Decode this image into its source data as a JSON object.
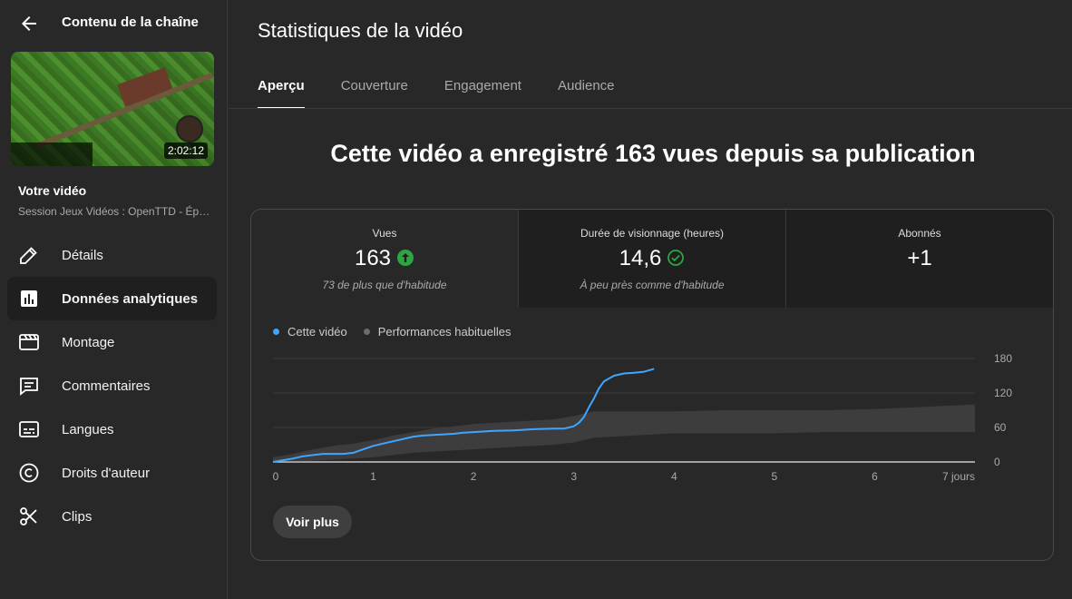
{
  "sidebar": {
    "title": "Contenu de la chaîne",
    "thumbnail_duration": "2:02:12",
    "your_video_label": "Votre vidéo",
    "video_title": "Session Jeux Vidéos : OpenTTD - Ép…",
    "items": [
      {
        "label": "Détails",
        "icon": "pencil-icon"
      },
      {
        "label": "Données analytiques",
        "icon": "analytics-icon",
        "active": true
      },
      {
        "label": "Montage",
        "icon": "clapperboard-icon"
      },
      {
        "label": "Commentaires",
        "icon": "comment-icon"
      },
      {
        "label": "Langues",
        "icon": "subtitles-icon"
      },
      {
        "label": "Droits d'auteur",
        "icon": "copyright-icon"
      },
      {
        "label": "Clips",
        "icon": "scissors-icon"
      }
    ]
  },
  "main": {
    "title": "Statistiques de la vidéo",
    "tabs": [
      {
        "label": "Aperçu",
        "active": true
      },
      {
        "label": "Couverture"
      },
      {
        "label": "Engagement"
      },
      {
        "label": "Audience"
      }
    ],
    "headline": "Cette vidéo a enregistré 163 vues depuis sa publication",
    "metrics": [
      {
        "label": "Vues",
        "value": "163",
        "sub": "73 de plus que d'habitude",
        "icon": "arrow-up-circle-icon"
      },
      {
        "label": "Durée de visionnage (heures)",
        "value": "14,6",
        "sub": "À peu près comme d'habitude",
        "icon": "check-circle-icon"
      },
      {
        "label": "Abonnés",
        "value": "+1",
        "sub": ""
      }
    ],
    "see_more": "Voir plus"
  },
  "colors": {
    "accent_line": "#3ea6ff",
    "typical_band": "#3d3d3d",
    "up_green": "#2ba640"
  },
  "chart_data": {
    "type": "line",
    "legend": [
      "Cette vidéo",
      "Performances habituelles"
    ],
    "x_ticks": [
      "0",
      "1",
      "2",
      "3",
      "4",
      "5",
      "6",
      "7 jours"
    ],
    "y_ticks": [
      "180",
      "120",
      "60",
      "0"
    ],
    "xlim": [
      0,
      7
    ],
    "ylim": [
      0,
      180
    ],
    "series": [
      {
        "name": "Cette vidéo",
        "x": [
          0,
          0.1,
          0.2,
          0.3,
          0.4,
          0.5,
          0.6,
          0.7,
          0.8,
          0.9,
          1.0,
          1.1,
          1.2,
          1.3,
          1.4,
          1.5,
          1.6,
          1.7,
          1.8,
          1.9,
          2.0,
          2.2,
          2.4,
          2.6,
          2.8,
          2.9,
          3.0,
          3.05,
          3.1,
          3.15,
          3.2,
          3.25,
          3.3,
          3.4,
          3.5,
          3.6,
          3.7,
          3.8
        ],
        "values": [
          0,
          3,
          6,
          10,
          12,
          14,
          14,
          14,
          16,
          22,
          28,
          32,
          36,
          40,
          44,
          46,
          47,
          48,
          49,
          51,
          52,
          54,
          55,
          57,
          58,
          58,
          62,
          68,
          78,
          95,
          110,
          128,
          140,
          150,
          154,
          155,
          157,
          162
        ]
      },
      {
        "name": "Performances habituelles",
        "band_x": [
          0,
          0.2,
          0.4,
          0.6,
          0.8,
          1.0,
          1.2,
          1.4,
          1.6,
          1.8,
          2.0,
          2.2,
          2.4,
          2.6,
          2.8,
          3.0,
          3.2,
          3.4,
          3.6,
          3.8,
          4.0,
          4.5,
          5.0,
          5.5,
          6.0,
          6.5,
          7.0
        ],
        "upper": [
          8,
          14,
          22,
          28,
          32,
          38,
          46,
          52,
          58,
          62,
          66,
          68,
          70,
          72,
          74,
          80,
          88,
          88,
          88,
          88,
          88,
          90,
          90,
          90,
          92,
          96,
          100
        ],
        "lower": [
          0,
          0,
          2,
          4,
          6,
          8,
          12,
          16,
          18,
          20,
          22,
          24,
          26,
          28,
          30,
          34,
          42,
          44,
          46,
          48,
          50,
          50,
          50,
          52,
          52,
          52,
          52
        ]
      }
    ]
  }
}
